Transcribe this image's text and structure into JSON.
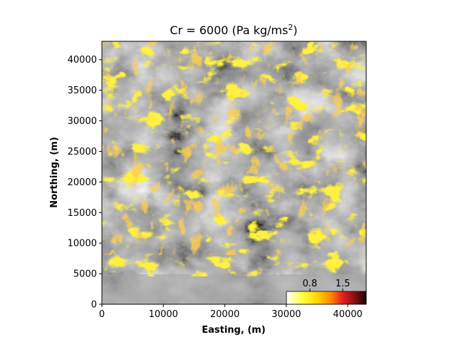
{
  "chart_data": {
    "type": "heatmap",
    "title_prefix": "Cr = 6000 (Pa kg/ms",
    "title_sup": "2",
    "title_suffix": ")",
    "xlabel": "Easting, (m)",
    "ylabel": "Northing, (m)",
    "xlim": [
      0,
      43000
    ],
    "ylim": [
      0,
      43000
    ],
    "x_ticks": [
      0,
      10000,
      20000,
      30000,
      40000
    ],
    "y_ticks": [
      0,
      5000,
      10000,
      15000,
      20000,
      25000,
      30000,
      35000,
      40000
    ],
    "grid": false,
    "background": "grayscale shaded-relief hillshade",
    "colorbar": {
      "placement": "inset lower-right",
      "ticks": [
        {
          "label": "0.8",
          "value": 0.8
        },
        {
          "label": "1.5",
          "value": 1.5
        }
      ],
      "range": [
        0.3,
        2.0
      ],
      "colors": [
        "#ffffff",
        "#ffff40",
        "#ffd000",
        "#ff8c00",
        "#e82020",
        "#8a1010",
        "#1a0505"
      ]
    }
  }
}
